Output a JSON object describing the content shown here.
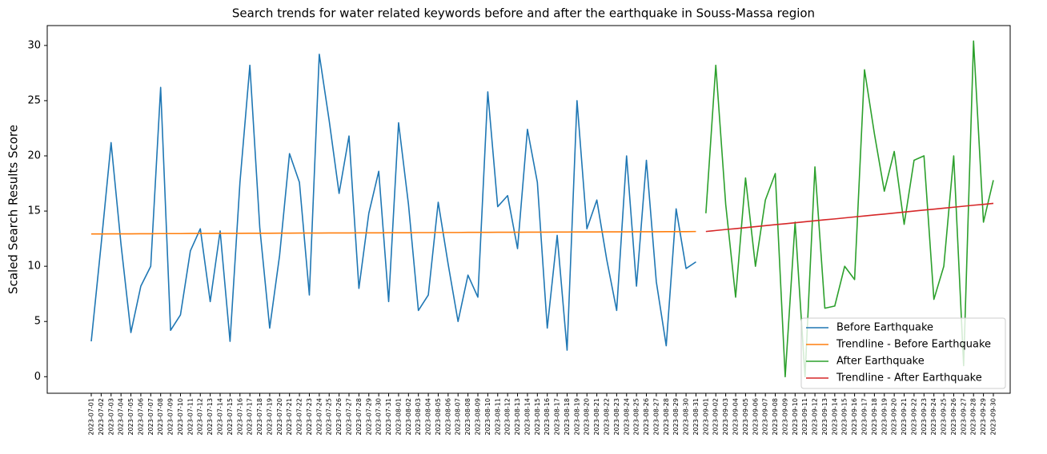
{
  "chart_data": {
    "type": "line",
    "title": "Search trends for water related keywords before and after the earthquake in Souss-Massa region",
    "y_label": "Scaled Search Results Score",
    "categories": [
      "2023-07-01",
      "2023-07-02",
      "2023-07-03",
      "2023-07-04",
      "2023-07-05",
      "2023-07-06",
      "2023-07-07",
      "2023-07-08",
      "2023-07-09",
      "2023-07-10",
      "2023-07-11",
      "2023-07-12",
      "2023-07-13",
      "2023-07-14",
      "2023-07-15",
      "2023-07-16",
      "2023-07-17",
      "2023-07-18",
      "2023-07-19",
      "2023-07-20",
      "2023-07-21",
      "2023-07-22",
      "2023-07-23",
      "2023-07-24",
      "2023-07-25",
      "2023-07-26",
      "2023-07-27",
      "2023-07-28",
      "2023-07-29",
      "2023-07-30",
      "2023-07-31",
      "2023-08-01",
      "2023-08-02",
      "2023-08-03",
      "2023-08-04",
      "2023-08-05",
      "2023-08-06",
      "2023-08-07",
      "2023-08-08",
      "2023-08-09",
      "2023-08-10",
      "2023-08-11",
      "2023-08-12",
      "2023-08-13",
      "2023-08-14",
      "2023-08-15",
      "2023-08-16",
      "2023-08-17",
      "2023-08-18",
      "2023-08-19",
      "2023-08-20",
      "2023-08-21",
      "2023-08-22",
      "2023-08-23",
      "2023-08-24",
      "2023-08-25",
      "2023-08-26",
      "2023-08-27",
      "2023-08-28",
      "2023-08-29",
      "2023-08-30",
      "2023-08-31",
      "2023-09-01",
      "2023-09-02",
      "2023-09-03",
      "2023-09-04",
      "2023-09-05",
      "2023-09-06",
      "2023-09-07",
      "2023-09-08",
      "2023-09-09",
      "2023-09-10",
      "2023-09-11",
      "2023-09-12",
      "2023-09-13",
      "2023-09-14",
      "2023-09-15",
      "2023-09-16",
      "2023-09-17",
      "2023-09-18",
      "2023-09-19",
      "2023-09-20",
      "2023-09-21",
      "2023-09-22",
      "2023-09-23",
      "2023-09-24",
      "2023-09-25",
      "2023-09-26",
      "2023-09-27",
      "2023-09-28",
      "2023-09-29",
      "2023-09-30"
    ],
    "series": [
      {
        "name": "Before Earthquake",
        "color": "#1f77b4",
        "values": [
          3.2,
          12,
          21.2,
          12,
          4,
          8.2,
          10,
          26.2,
          4.2,
          5.6,
          11.4,
          13.4,
          6.8,
          13.2,
          3.2,
          17.6,
          28.2,
          13.5,
          4.4,
          11,
          20.2,
          17.6,
          7.4,
          29.2,
          23.2,
          16.6,
          21.8,
          8,
          14.8,
          18.6,
          6.8,
          23,
          15.6,
          6,
          7.4,
          15.8,
          10.2,
          5,
          9.2,
          7.2,
          25.8,
          15.4,
          16.4,
          11.6,
          22.4,
          17.6,
          4.4,
          12.8,
          2.4,
          25,
          13.4,
          16,
          10.6,
          6,
          20,
          8.2,
          19.6,
          8.6,
          2.8,
          15.2,
          9.8,
          10.4,
          null,
          null,
          null,
          null,
          null,
          null,
          null,
          null,
          null,
          null,
          null,
          null,
          null,
          null,
          null,
          null,
          null,
          null,
          null,
          null,
          null,
          null,
          null,
          null,
          null,
          null,
          null,
          null,
          null,
          null
        ]
      },
      {
        "name": "Trendline - Before Earthquake",
        "color": "#ff7f0e",
        "values": [
          12.93,
          12.93,
          12.94,
          12.94,
          12.94,
          12.95,
          12.95,
          12.96,
          12.96,
          12.96,
          12.97,
          12.97,
          12.97,
          12.98,
          12.98,
          12.98,
          12.99,
          12.99,
          12.99,
          13.0,
          13.0,
          13.01,
          13.01,
          13.01,
          13.02,
          13.02,
          13.02,
          13.03,
          13.03,
          13.03,
          13.04,
          13.04,
          13.04,
          13.05,
          13.05,
          13.06,
          13.06,
          13.06,
          13.07,
          13.07,
          13.07,
          13.08,
          13.08,
          13.08,
          13.09,
          13.09,
          13.09,
          13.1,
          13.1,
          13.11,
          13.11,
          13.11,
          13.12,
          13.12,
          13.12,
          13.13,
          13.13,
          13.13,
          13.14,
          13.14,
          13.14,
          13.15,
          null,
          null,
          null,
          null,
          null,
          null,
          null,
          null,
          null,
          null,
          null,
          null,
          null,
          null,
          null,
          null,
          null,
          null,
          null,
          null,
          null,
          null,
          null,
          null,
          null,
          null,
          null,
          null,
          null,
          null
        ]
      },
      {
        "name": "After Earthquake",
        "color": "#2ca02c",
        "values": [
          null,
          null,
          null,
          null,
          null,
          null,
          null,
          null,
          null,
          null,
          null,
          null,
          null,
          null,
          null,
          null,
          null,
          null,
          null,
          null,
          null,
          null,
          null,
          null,
          null,
          null,
          null,
          null,
          null,
          null,
          null,
          null,
          null,
          null,
          null,
          null,
          null,
          null,
          null,
          null,
          null,
          null,
          null,
          null,
          null,
          null,
          null,
          null,
          null,
          null,
          null,
          null,
          null,
          null,
          null,
          null,
          null,
          null,
          null,
          null,
          null,
          null,
          14.8,
          28.2,
          15.6,
          7.2,
          18,
          10,
          16,
          18.4,
          0,
          14,
          0,
          19,
          6.2,
          6.4,
          10,
          8.8,
          27.8,
          22,
          16.8,
          20.4,
          13.8,
          19.6,
          20,
          7,
          10,
          20,
          1,
          30.4,
          14,
          17.8
        ]
      },
      {
        "name": "Trendline - After Earthquake",
        "color": "#d62728",
        "values": [
          null,
          null,
          null,
          null,
          null,
          null,
          null,
          null,
          null,
          null,
          null,
          null,
          null,
          null,
          null,
          null,
          null,
          null,
          null,
          null,
          null,
          null,
          null,
          null,
          null,
          null,
          null,
          null,
          null,
          null,
          null,
          null,
          null,
          null,
          null,
          null,
          null,
          null,
          null,
          null,
          null,
          null,
          null,
          null,
          null,
          null,
          null,
          null,
          null,
          null,
          null,
          null,
          null,
          null,
          null,
          null,
          null,
          null,
          null,
          null,
          null,
          null,
          13.15,
          13.24,
          13.33,
          13.41,
          13.5,
          13.59,
          13.68,
          13.77,
          13.85,
          13.94,
          14.03,
          14.12,
          14.21,
          14.29,
          14.38,
          14.47,
          14.56,
          14.65,
          14.73,
          14.82,
          14.91,
          15.0,
          15.09,
          15.17,
          15.26,
          15.35,
          15.44,
          15.53,
          15.61,
          15.7
        ]
      }
    ],
    "ylim": [
      -1.5,
      31.8
    ],
    "yticks": [
      0,
      5,
      10,
      15,
      20,
      25,
      30
    ],
    "legend": "lower right",
    "grid": false
  }
}
